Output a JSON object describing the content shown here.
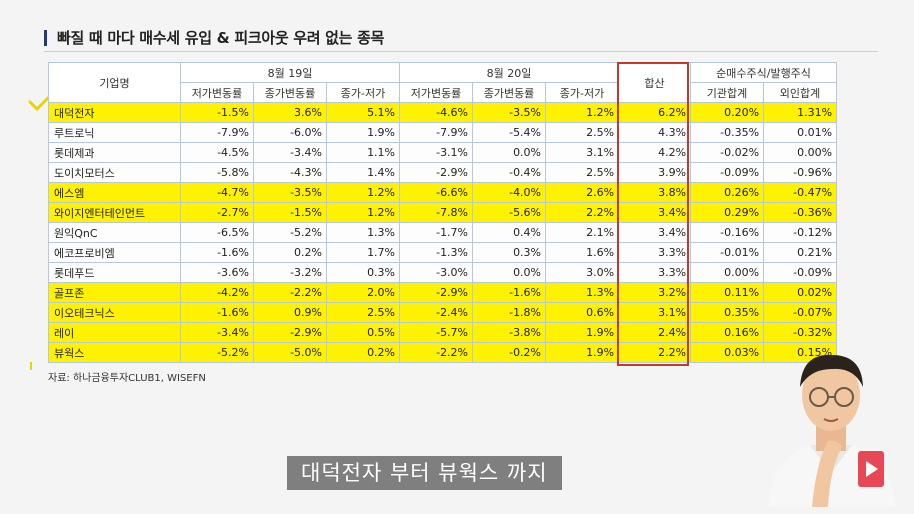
{
  "title": "빠질 때 마다 매수세 유입 & 피크아웃 우려 없는 종목",
  "table": {
    "headers": {
      "company": "기업명",
      "aug19": "8월 19일",
      "aug20": "8월 20일",
      "sum": "합산",
      "net_buy": "순매수주식/발행주식",
      "sub": [
        "저가변동률",
        "종가변동률",
        "종가-저가",
        "저가변동률",
        "종가변동률",
        "종가-저가",
        "기관합계",
        "외인합계"
      ]
    },
    "rows": [
      {
        "name": "대덕전자",
        "v": [
          "-1.5%",
          "3.6%",
          "5.1%",
          "-4.6%",
          "-3.5%",
          "1.2%",
          "6.2%",
          "0.20%",
          "1.31%"
        ],
        "highlight": true
      },
      {
        "name": "루트로닉",
        "v": [
          "-7.9%",
          "-6.0%",
          "1.9%",
          "-7.9%",
          "-5.4%",
          "2.5%",
          "4.3%",
          "-0.35%",
          "0.01%"
        ],
        "highlight": false
      },
      {
        "name": "롯데제과",
        "v": [
          "-4.5%",
          "-3.4%",
          "1.1%",
          "-3.1%",
          "0.0%",
          "3.1%",
          "4.2%",
          "-0.02%",
          "0.00%"
        ],
        "highlight": false
      },
      {
        "name": "도이치모터스",
        "v": [
          "-5.8%",
          "-4.3%",
          "1.4%",
          "-2.9%",
          "-0.4%",
          "2.5%",
          "3.9%",
          "-0.09%",
          "-0.96%"
        ],
        "highlight": false
      },
      {
        "name": "에스엠",
        "v": [
          "-4.7%",
          "-3.5%",
          "1.2%",
          "-6.6%",
          "-4.0%",
          "2.6%",
          "3.8%",
          "0.26%",
          "-0.47%"
        ],
        "highlight": true
      },
      {
        "name": "와이지엔터테인먼트",
        "v": [
          "-2.7%",
          "-1.5%",
          "1.2%",
          "-7.8%",
          "-5.6%",
          "2.2%",
          "3.4%",
          "0.29%",
          "-0.36%"
        ],
        "highlight": true
      },
      {
        "name": "원익QnC",
        "v": [
          "-6.5%",
          "-5.2%",
          "1.3%",
          "-1.7%",
          "0.4%",
          "2.1%",
          "3.4%",
          "-0.16%",
          "-0.12%"
        ],
        "highlight": false
      },
      {
        "name": "에코프로비엠",
        "v": [
          "-1.6%",
          "0.2%",
          "1.7%",
          "-1.3%",
          "0.3%",
          "1.6%",
          "3.3%",
          "-0.01%",
          "0.21%"
        ],
        "highlight": false
      },
      {
        "name": "롯데푸드",
        "v": [
          "-3.6%",
          "-3.2%",
          "0.3%",
          "-3.0%",
          "0.0%",
          "3.0%",
          "3.3%",
          "0.00%",
          "-0.09%"
        ],
        "highlight": false
      },
      {
        "name": "골프존",
        "v": [
          "-4.2%",
          "-2.2%",
          "2.0%",
          "-2.9%",
          "-1.6%",
          "1.3%",
          "3.2%",
          "0.11%",
          "0.02%"
        ],
        "highlight": true
      },
      {
        "name": "이오테크닉스",
        "v": [
          "-1.6%",
          "0.9%",
          "2.5%",
          "-2.4%",
          "-1.8%",
          "0.6%",
          "3.1%",
          "0.35%",
          "-0.07%"
        ],
        "highlight": true
      },
      {
        "name": "레이",
        "v": [
          "-3.4%",
          "-2.9%",
          "0.5%",
          "-5.7%",
          "-3.8%",
          "1.9%",
          "2.4%",
          "0.16%",
          "-0.32%"
        ],
        "highlight": true
      },
      {
        "name": "뷰웍스",
        "v": [
          "-5.2%",
          "-5.0%",
          "0.2%",
          "-2.2%",
          "-0.2%",
          "1.9%",
          "2.2%",
          "0.03%",
          "0.15%"
        ],
        "highlight": true
      }
    ]
  },
  "source": "자료: 하나금융투자CLUB1, WISEFN",
  "subtitle": "대덕전자 부터 뷰웍스 까지",
  "colors": {
    "highlight": "#fff200",
    "border": "#b7c7dc",
    "sum_box": "#c0392b"
  }
}
